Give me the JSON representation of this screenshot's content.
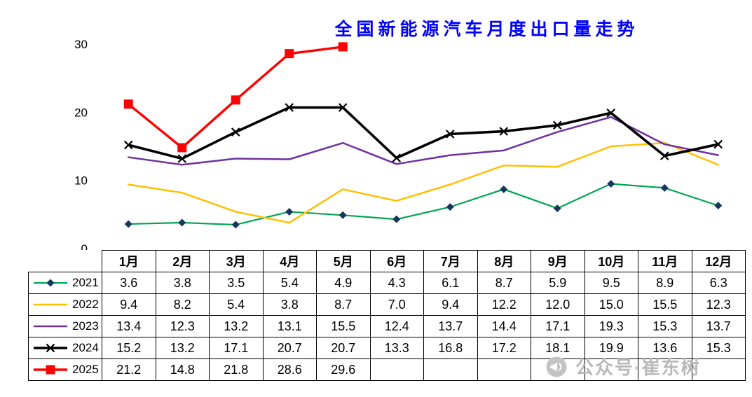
{
  "title": "全国新能源汽车月度出口量走势",
  "watermark": {
    "text": "公众号·崔东树",
    "icon": "megaphone-icon"
  },
  "chart_data": {
    "type": "line",
    "title": "全国新能源汽车月度出口量走势",
    "categories": [
      "1月",
      "2月",
      "3月",
      "4月",
      "5月",
      "6月",
      "7月",
      "8月",
      "9月",
      "10月",
      "11月",
      "12月"
    ],
    "series": [
      {
        "name": "2021",
        "color": "#00A651",
        "marker": "diamond",
        "marker_color": "#16365C",
        "line_width": 2.2,
        "values": [
          3.6,
          3.8,
          3.5,
          5.4,
          4.9,
          4.3,
          6.1,
          8.7,
          5.9,
          9.5,
          8.9,
          6.3
        ]
      },
      {
        "name": "2022",
        "color": "#FFC000",
        "marker": "none",
        "line_width": 2.5,
        "values": [
          9.4,
          8.2,
          5.4,
          3.8,
          8.7,
          7.0,
          9.4,
          12.2,
          12.0,
          15.0,
          15.5,
          12.3
        ]
      },
      {
        "name": "2023",
        "color": "#7030A0",
        "marker": "none",
        "line_width": 2.5,
        "values": [
          13.4,
          12.3,
          13.2,
          13.1,
          15.5,
          12.4,
          13.7,
          14.4,
          17.1,
          19.3,
          15.3,
          13.7
        ]
      },
      {
        "name": "2024",
        "color": "#000000",
        "marker": "x",
        "marker_color": "#000000",
        "line_width": 3.6,
        "values": [
          15.2,
          13.2,
          17.1,
          20.7,
          20.7,
          13.3,
          16.8,
          17.2,
          18.1,
          19.9,
          13.6,
          15.3
        ]
      },
      {
        "name": "2025",
        "color": "#FF0000",
        "marker": "square",
        "marker_color": "#FF0000",
        "line_width": 3.4,
        "values": [
          21.2,
          14.8,
          21.8,
          28.6,
          29.6
        ]
      }
    ],
    "ylim": [
      0,
      30
    ],
    "yticks": [
      0,
      10,
      20,
      30
    ],
    "grid": false,
    "legend_position": "table-left"
  }
}
